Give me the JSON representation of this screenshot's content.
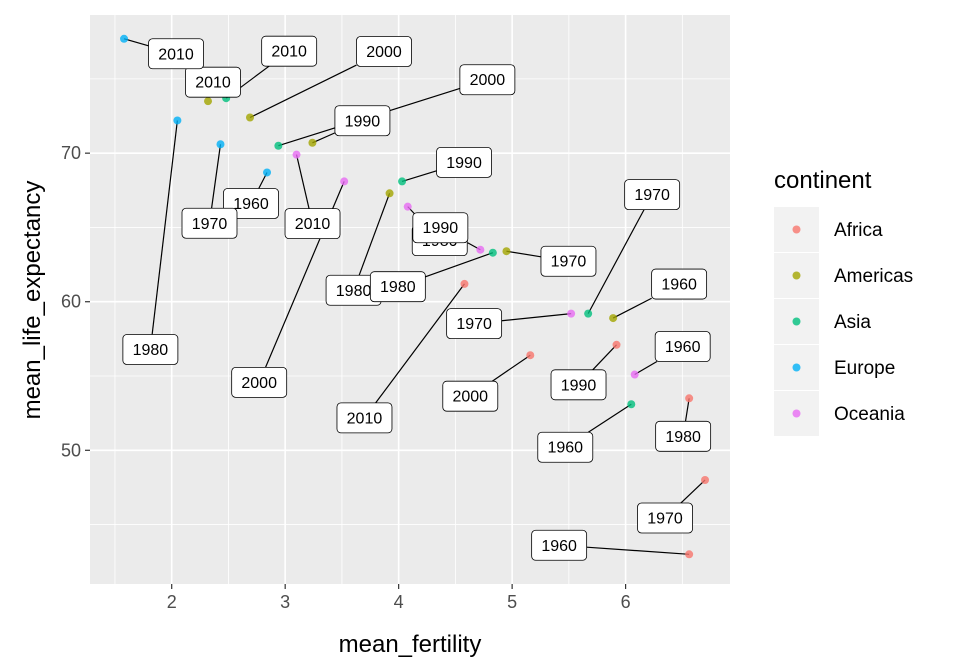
{
  "chart_data": {
    "type": "scatter",
    "xlabel": "mean_fertility",
    "ylabel": "mean_life_expectancy",
    "xlim": [
      1.28,
      6.92
    ],
    "ylim": [
      41.0,
      79.3
    ],
    "x_ticks": [
      2,
      3,
      4,
      5,
      6
    ],
    "y_ticks": [
      50,
      60,
      70
    ],
    "grid": true,
    "background": "#ebebeb",
    "legend": {
      "title": "continent",
      "position": "right",
      "entries": [
        {
          "name": "Africa",
          "color": "#F8766D"
        },
        {
          "name": "Americas",
          "color": "#A3A500"
        },
        {
          "name": "Asia",
          "color": "#00BF7D"
        },
        {
          "name": "Europe",
          "color": "#00B0F6"
        },
        {
          "name": "Oceania",
          "color": "#E76BF3"
        }
      ]
    },
    "series": [
      {
        "name": "Africa",
        "points": [
          {
            "x": 6.56,
            "y": 43.0,
            "label": "1960"
          },
          {
            "x": 6.7,
            "y": 48.0,
            "label": "1970"
          },
          {
            "x": 6.56,
            "y": 53.5,
            "label": "1980"
          },
          {
            "x": 5.92,
            "y": 57.1,
            "label": "1990"
          },
          {
            "x": 5.16,
            "y": 56.4,
            "label": "2000"
          },
          {
            "x": 4.58,
            "y": 61.2,
            "label": "2010"
          }
        ]
      },
      {
        "name": "Americas",
        "points": [
          {
            "x": 5.89,
            "y": 58.9,
            "label": "1960"
          },
          {
            "x": 4.95,
            "y": 63.4,
            "label": "1970"
          },
          {
            "x": 3.92,
            "y": 67.3,
            "label": "1980"
          },
          {
            "x": 3.24,
            "y": 70.7,
            "label": "1990"
          },
          {
            "x": 2.69,
            "y": 72.4,
            "label": "2000"
          },
          {
            "x": 2.32,
            "y": 73.5,
            "label": "2010"
          }
        ]
      },
      {
        "name": "Asia",
        "points": [
          {
            "x": 6.05,
            "y": 53.1,
            "label": "1960"
          },
          {
            "x": 5.67,
            "y": 59.2,
            "label": "1970"
          },
          {
            "x": 4.83,
            "y": 63.3,
            "label": "1980"
          },
          {
            "x": 4.03,
            "y": 68.1,
            "label": "1990"
          },
          {
            "x": 2.94,
            "y": 70.5,
            "label": "2000"
          },
          {
            "x": 2.48,
            "y": 73.7,
            "label": "2010"
          }
        ]
      },
      {
        "name": "Europe",
        "points": [
          {
            "x": 2.84,
            "y": 68.7,
            "label": "1960"
          },
          {
            "x": 2.43,
            "y": 70.6,
            "label": "1970"
          },
          {
            "x": 2.05,
            "y": 72.2,
            "label": "1980"
          },
          {
            "x": 1.58,
            "y": 77.7,
            "label": "2010"
          }
        ]
      },
      {
        "name": "Oceania",
        "points": [
          {
            "x": 6.08,
            "y": 55.1,
            "label": "1960"
          },
          {
            "x": 5.52,
            "y": 59.2,
            "label": "1970"
          },
          {
            "x": 4.08,
            "y": 66.4,
            "label": "1980"
          },
          {
            "x": 4.72,
            "y": 63.5,
            "label": "1990"
          },
          {
            "x": 3.52,
            "y": 68.1,
            "label": "2000"
          },
          {
            "x": 3.1,
            "y": 69.9,
            "label": "2010"
          }
        ]
      }
    ]
  }
}
